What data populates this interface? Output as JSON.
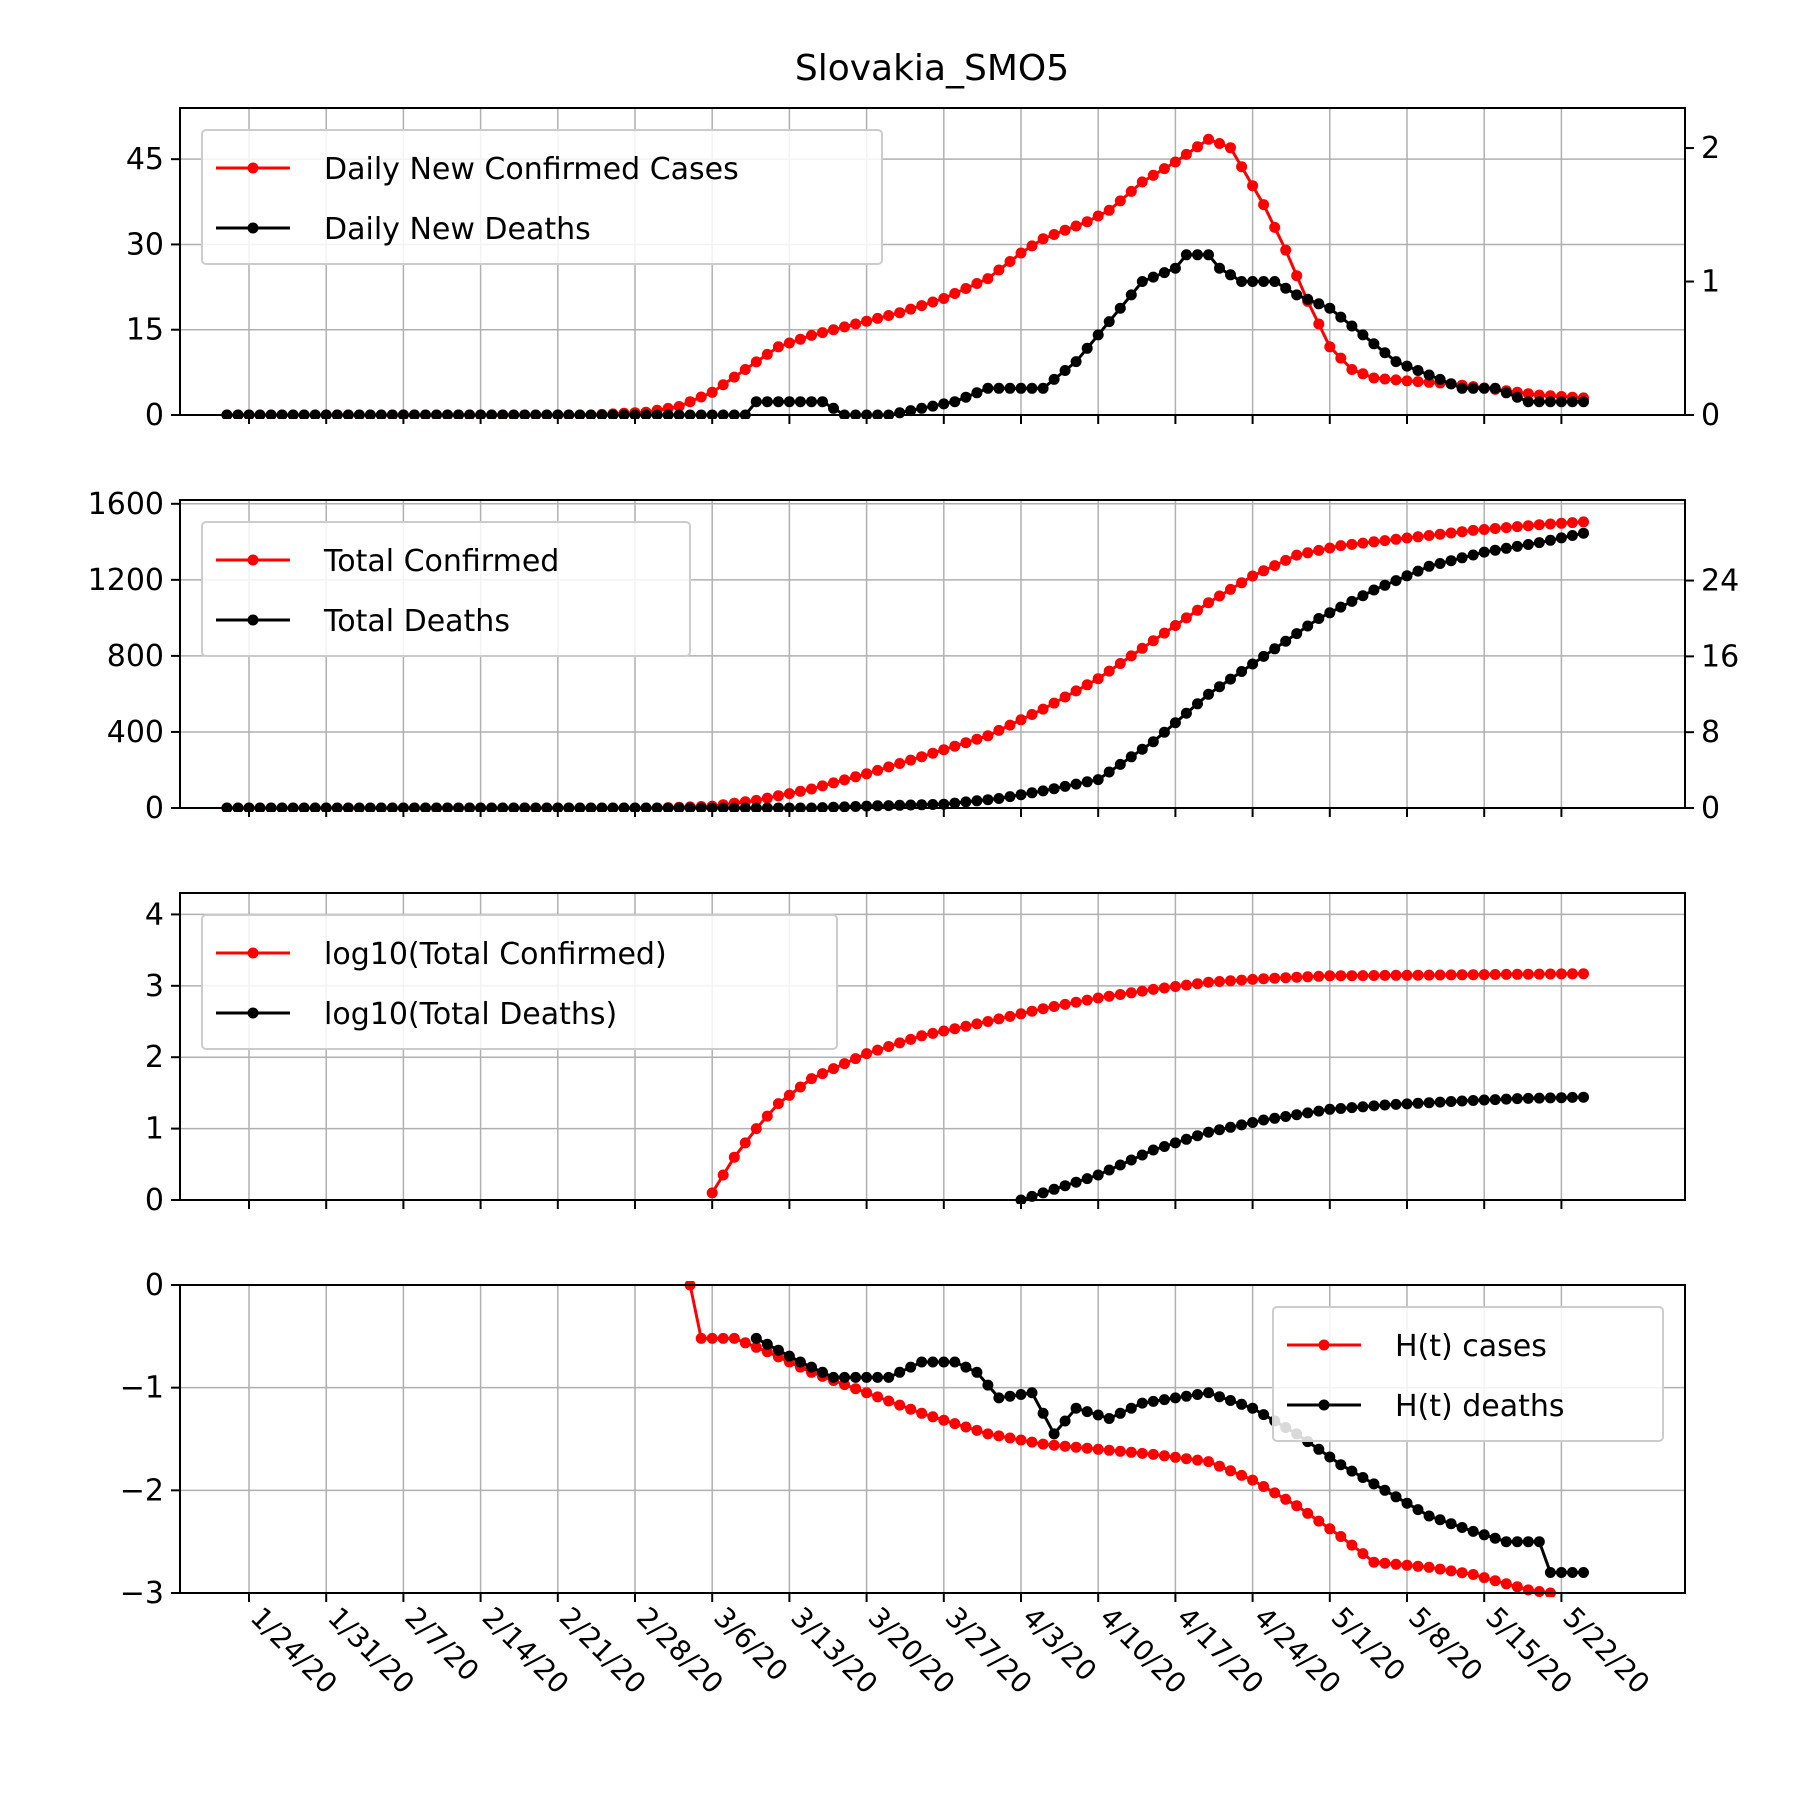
{
  "chart_data": {
    "title": "Slovakia_SMO5",
    "x_axis": {
      "start_date": "1/22/20",
      "end_date": "5/24/20",
      "tick_labels": [
        "1/24/20",
        "1/31/20",
        "2/7/20",
        "2/14/20",
        "2/21/20",
        "2/28/20",
        "3/6/20",
        "3/13/20",
        "3/20/20",
        "3/27/20",
        "4/3/20",
        "4/10/20",
        "4/17/20",
        "4/24/20",
        "5/1/20",
        "5/8/20",
        "5/15/20",
        "5/22/20"
      ]
    },
    "colors": {
      "cases": "#ff0000",
      "deaths": "#000000",
      "grid": "#b0b0b0"
    },
    "grid": true,
    "panels": [
      {
        "type": "line",
        "left_ylim": [
          0,
          54
        ],
        "left_ticks": [
          0,
          15,
          30,
          45
        ],
        "right_ylim": [
          0,
          2.3
        ],
        "right_ticks": [
          0,
          1,
          2
        ],
        "legend_position": "top-left",
        "series": [
          {
            "name": "Daily New Confirmed Cases",
            "color": "#ff0000",
            "axis": "left",
            "points": [
              [
                "1/22/20",
                0
              ],
              [
                "2/24/20",
                0
              ],
              [
                "2/29/20",
                0.5
              ],
              [
                "3/3/20",
                1.5
              ],
              [
                "3/6/20",
                4
              ],
              [
                "3/9/20",
                8
              ],
              [
                "3/12/20",
                12
              ],
              [
                "3/15/20",
                14
              ],
              [
                "3/19/20",
                16
              ],
              [
                "3/23/20",
                18
              ],
              [
                "3/27/20",
                20.5
              ],
              [
                "3/31/20",
                24
              ],
              [
                "4/3/20",
                28.5
              ],
              [
                "4/5/20",
                31
              ],
              [
                "4/9/20",
                34
              ],
              [
                "4/11/20",
                36
              ],
              [
                "4/14/20",
                41
              ],
              [
                "4/17/20",
                44.5
              ],
              [
                "4/20/20",
                48.5
              ],
              [
                "4/22/20",
                47
              ],
              [
                "4/25/20",
                37
              ],
              [
                "4/27/20",
                29
              ],
              [
                "4/29/20",
                20
              ],
              [
                "5/1/20",
                12
              ],
              [
                "5/3/20",
                8
              ],
              [
                "5/5/20",
                6.5
              ],
              [
                "5/8/20",
                6
              ],
              [
                "5/12/20",
                5.5
              ],
              [
                "5/16/20",
                4.5
              ],
              [
                "5/20/20",
                3.5
              ],
              [
                "5/24/20",
                3
              ]
            ]
          },
          {
            "name": "Daily New Deaths",
            "color": "#000000",
            "axis": "right",
            "points": [
              [
                "1/22/20",
                0
              ],
              [
                "3/9/20",
                0
              ],
              [
                "3/10/20",
                0.1
              ],
              [
                "3/12/20",
                0.1
              ],
              [
                "3/14/20",
                0.1
              ],
              [
                "3/16/20",
                0.1
              ],
              [
                "3/18/20",
                0
              ],
              [
                "3/22/20",
                0
              ],
              [
                "3/28/20",
                0.1
              ],
              [
                "3/31/20",
                0.2
              ],
              [
                "4/2/20",
                0.2
              ],
              [
                "4/5/20",
                0.2
              ],
              [
                "4/8/20",
                0.4
              ],
              [
                "4/10/20",
                0.6
              ],
              [
                "4/12/20",
                0.8
              ],
              [
                "4/14/20",
                1
              ],
              [
                "4/17/20",
                1.1
              ],
              [
                "4/18/20",
                1.2
              ],
              [
                "4/20/20",
                1.2
              ],
              [
                "4/21/20",
                1.1
              ],
              [
                "4/23/20",
                1
              ],
              [
                "4/26/20",
                1
              ],
              [
                "4/28/20",
                0.9
              ],
              [
                "5/1/20",
                0.8
              ],
              [
                "5/4/20",
                0.6
              ],
              [
                "5/7/20",
                0.4
              ],
              [
                "5/10/20",
                0.3
              ],
              [
                "5/13/20",
                0.2
              ],
              [
                "5/16/20",
                0.2
              ],
              [
                "5/19/20",
                0.1
              ],
              [
                "5/22/20",
                0.1
              ],
              [
                "5/24/20",
                0.1
              ]
            ]
          }
        ]
      },
      {
        "type": "line",
        "left_ylim": [
          0,
          1620
        ],
        "left_ticks": [
          0,
          400,
          800,
          1200,
          1600
        ],
        "right_ylim": [
          0,
          32.5
        ],
        "right_ticks": [
          0,
          8,
          16,
          24
        ],
        "legend_position": "top-left",
        "series": [
          {
            "name": "Total Confirmed",
            "color": "#ff0000",
            "axis": "left",
            "points": [
              [
                "1/22/20",
                0
              ],
              [
                "3/1/20",
                0
              ],
              [
                "3/6/20",
                10
              ],
              [
                "3/10/20",
                40
              ],
              [
                "3/15/20",
                100
              ],
              [
                "3/20/20",
                180
              ],
              [
                "3/25/20",
                270
              ],
              [
                "3/31/20",
                380
              ],
              [
                "4/5/20",
                520
              ],
              [
                "4/10/20",
                680
              ],
              [
                "4/15/20",
                880
              ],
              [
                "4/20/20",
                1080
              ],
              [
                "4/24/20",
                1220
              ],
              [
                "4/28/20",
                1330
              ],
              [
                "5/2/20",
                1380
              ],
              [
                "5/8/20",
                1420
              ],
              [
                "5/14/20",
                1460
              ],
              [
                "5/20/20",
                1490
              ],
              [
                "5/24/20",
                1505
              ]
            ]
          },
          {
            "name": "Total Deaths",
            "color": "#000000",
            "axis": "right",
            "points": [
              [
                "1/22/20",
                0
              ],
              [
                "3/15/20",
                0
              ],
              [
                "3/20/20",
                0.2
              ],
              [
                "3/27/20",
                0.4
              ],
              [
                "4/1/20",
                1
              ],
              [
                "4/5/20",
                1.8
              ],
              [
                "4/10/20",
                3
              ],
              [
                "4/15/20",
                7
              ],
              [
                "4/20/20",
                12
              ],
              [
                "4/25/20",
                16
              ],
              [
                "4/30/20",
                20
              ],
              [
                "5/5/20",
                23
              ],
              [
                "5/10/20",
                25.5
              ],
              [
                "5/15/20",
                27
              ],
              [
                "5/20/20",
                28
              ],
              [
                "5/24/20",
                29
              ]
            ]
          }
        ]
      },
      {
        "type": "line",
        "left_ylim": [
          0,
          4.3
        ],
        "left_ticks": [
          0,
          1,
          2,
          3,
          4
        ],
        "legend_position": "top-left",
        "series": [
          {
            "name": "log10(Total Confirmed)",
            "color": "#ff0000",
            "axis": "left",
            "points": [
              [
                "3/6/20",
                0.1
              ],
              [
                "3/8/20",
                0.6
              ],
              [
                "3/10/20",
                1.0
              ],
              [
                "3/12/20",
                1.35
              ],
              [
                "3/15/20",
                1.7
              ],
              [
                "3/20/20",
                2.05
              ],
              [
                "3/25/20",
                2.3
              ],
              [
                "3/31/20",
                2.5
              ],
              [
                "4/5/20",
                2.68
              ],
              [
                "4/10/20",
                2.83
              ],
              [
                "4/15/20",
                2.95
              ],
              [
                "4/20/20",
                3.05
              ],
              [
                "4/25/20",
                3.1
              ],
              [
                "5/1/20",
                3.14
              ],
              [
                "5/10/20",
                3.15
              ],
              [
                "5/24/20",
                3.17
              ]
            ]
          },
          {
            "name": "log10(Total Deaths)",
            "color": "#000000",
            "axis": "left",
            "points": [
              [
                "4/3/20",
                0
              ],
              [
                "4/6/20",
                0.15
              ],
              [
                "4/10/20",
                0.35
              ],
              [
                "4/15/20",
                0.7
              ],
              [
                "4/20/20",
                0.95
              ],
              [
                "4/25/20",
                1.12
              ],
              [
                "5/1/20",
                1.27
              ],
              [
                "5/6/20",
                1.33
              ],
              [
                "5/12/20",
                1.38
              ],
              [
                "5/18/20",
                1.42
              ],
              [
                "5/24/20",
                1.44
              ]
            ]
          }
        ]
      },
      {
        "type": "line",
        "left_ylim": [
          -3,
          0
        ],
        "left_ticks": [
          -3,
          -2,
          -1,
          0
        ],
        "legend_position": "top-right",
        "series": [
          {
            "name": "H(t) cases",
            "color": "#ff0000",
            "axis": "left",
            "points": [
              [
                "3/4/20",
                0
              ],
              [
                "3/5/20",
                -0.52
              ],
              [
                "3/8/20",
                -0.52
              ],
              [
                "3/11/20",
                -0.65
              ],
              [
                "3/15/20",
                -0.85
              ],
              [
                "3/20/20",
                -1.05
              ],
              [
                "3/25/20",
                -1.25
              ],
              [
                "3/31/20",
                -1.45
              ],
              [
                "4/5/20",
                -1.55
              ],
              [
                "4/10/20",
                -1.6
              ],
              [
                "4/15/20",
                -1.65
              ],
              [
                "4/20/20",
                -1.72
              ],
              [
                "4/24/20",
                -1.9
              ],
              [
                "4/28/20",
                -2.15
              ],
              [
                "5/2/20",
                -2.45
              ],
              [
                "5/5/20",
                -2.7
              ],
              [
                "5/10/20",
                -2.75
              ],
              [
                "5/14/20",
                -2.82
              ],
              [
                "5/19/20",
                -2.97
              ],
              [
                "5/21/20",
                -3
              ]
            ]
          },
          {
            "name": "H(t) deaths",
            "color": "#000000",
            "axis": "left",
            "points": [
              [
                "3/10/20",
                -0.52
              ],
              [
                "3/14/20",
                -0.75
              ],
              [
                "3/17/20",
                -0.9
              ],
              [
                "3/22/20",
                -0.9
              ],
              [
                "3/25/20",
                -0.75
              ],
              [
                "3/28/20",
                -0.75
              ],
              [
                "3/30/20",
                -0.85
              ],
              [
                "4/1/20",
                -1.1
              ],
              [
                "4/4/20",
                -1.05
              ],
              [
                "4/6/20",
                -1.45
              ],
              [
                "4/8/20",
                -1.2
              ],
              [
                "4/11/20",
                -1.3
              ],
              [
                "4/14/20",
                -1.15
              ],
              [
                "4/17/20",
                -1.1
              ],
              [
                "4/20/20",
                -1.05
              ],
              [
                "4/24/20",
                -1.2
              ],
              [
                "4/28/20",
                -1.45
              ],
              [
                "5/2/20",
                -1.75
              ],
              [
                "5/6/20",
                -2.0
              ],
              [
                "5/10/20",
                -2.25
              ],
              [
                "5/14/20",
                -2.4
              ],
              [
                "5/17/20",
                -2.5
              ],
              [
                "5/20/20",
                -2.5
              ],
              [
                "5/21/20",
                -2.8
              ],
              [
                "5/24/20",
                -2.8
              ]
            ]
          }
        ]
      }
    ]
  }
}
